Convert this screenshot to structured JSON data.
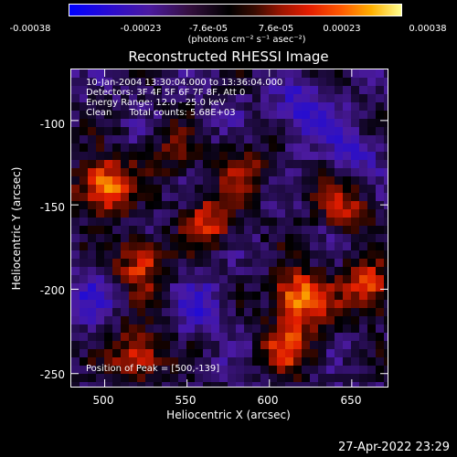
{
  "colorbar": {
    "ticks": [
      "-0.00038",
      "-0.00023",
      "-7.6e-05",
      "7.6e-05",
      "0.00023",
      "0.00038"
    ],
    "units": "(photons cm⁻² s⁻¹ asec⁻²)",
    "colors": [
      "#0000ff",
      "#4b1aa0",
      "#000000",
      "#e21c00",
      "#ffb000",
      "#ffff90"
    ]
  },
  "chart_data": {
    "type": "heatmap",
    "title": "Reconstructed RHESSI Image",
    "xlabel": "Heliocentric X (arcsec)",
    "ylabel": "Heliocentric Y (arcsec)",
    "xlim": [
      480,
      672
    ],
    "ylim": [
      -258,
      -70
    ],
    "xticks": [
      500,
      550,
      600,
      650
    ],
    "yticks": [
      -100,
      -150,
      -200,
      -250
    ],
    "value_range": [
      -0.00038,
      0.00038
    ],
    "peak": [
      500,
      -139
    ],
    "bright_regions": [
      {
        "x": 500,
        "y": -139,
        "value": 0.00036
      },
      {
        "x": 618,
        "y": -205,
        "value": 0.00034
      },
      {
        "x": 660,
        "y": -200,
        "value": 0.00028
      },
      {
        "x": 520,
        "y": -240,
        "value": 0.00026
      },
      {
        "x": 522,
        "y": -185,
        "value": 0.00024
      },
      {
        "x": 565,
        "y": -160,
        "value": 0.00022
      },
      {
        "x": 612,
        "y": -235,
        "value": 0.00022
      },
      {
        "x": 645,
        "y": -150,
        "value": 0.0002
      },
      {
        "x": 585,
        "y": -130,
        "value": 0.00016
      },
      {
        "x": 540,
        "y": -120,
        "value": 0.00012
      }
    ],
    "dark_regions": [
      {
        "x": 620,
        "y": -95,
        "value": -0.00018
      },
      {
        "x": 650,
        "y": -120,
        "value": -0.00012
      },
      {
        "x": 560,
        "y": -210,
        "value": -0.00012
      },
      {
        "x": 490,
        "y": -205,
        "value": -0.0001
      }
    ]
  },
  "annotations": [
    "10-Jan-2004 13:30:04.000 to 13:36:04.000",
    "Detectors: 3F 4F 5F 6F 7F 8F, Att 0",
    "Energy Range: 12.0 - 25.0 keV",
    "Clean      Total counts: 5.68E+03"
  ],
  "peak_text": "Position of Peak = [500,-139]",
  "timestamp": "27-Apr-2022 23:29"
}
